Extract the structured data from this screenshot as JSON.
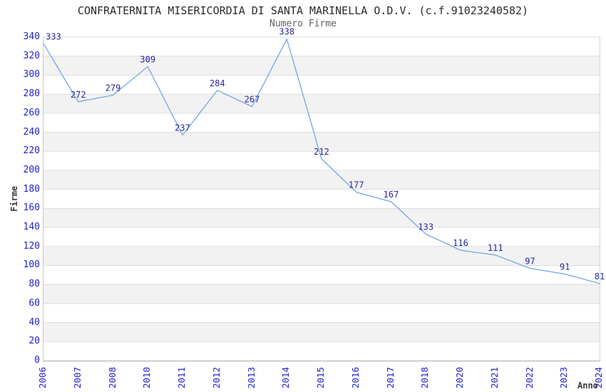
{
  "chart_data": {
    "type": "line",
    "title": "CONFRATERNITA MISERICORDIA DI SANTA MARINELLA O.D.V. (c.f.91023240582)",
    "subtitle": "Numero Firme",
    "xlabel": "Anno",
    "ylabel": "Firme",
    "categories": [
      "2006",
      "2007",
      "2008",
      "2010",
      "2011",
      "2012",
      "2013",
      "2014",
      "2015",
      "2016",
      "2017",
      "2018",
      "2020",
      "2021",
      "2022",
      "2023",
      "2024"
    ],
    "values": [
      333,
      272,
      279,
      309,
      237,
      284,
      267,
      338,
      212,
      177,
      167,
      133,
      116,
      111,
      97,
      91,
      81
    ],
    "ylim": [
      0,
      340
    ],
    "ytick_step": 20,
    "grid": "horizontal gridlines with alternating shaded bands every 20 units",
    "legend_position": "none",
    "colors": {
      "line": "#74a6e8",
      "data_label": "#26269e",
      "tick_label": "#2222cc",
      "title": "#2b2b2b",
      "subtitle": "#606060",
      "axis_title": "#3a3a3a",
      "band": "#f2f2f2",
      "gridline": "#dddddd",
      "plot_border": "#c8c8c8",
      "background": "#ffffff"
    }
  }
}
